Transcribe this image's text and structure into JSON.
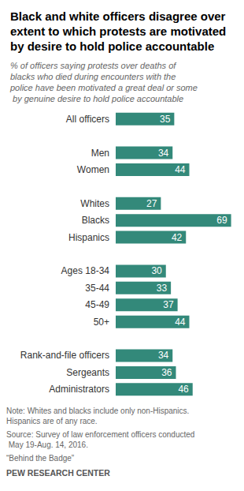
{
  "chart_data": {
    "type": "bar",
    "orientation": "horizontal",
    "title": "Black and white officers disagree over extent to which protests are motivated by desire to hold police accountable",
    "subtitle": "% of officers saying protests over deaths of blacks who died during encounters with the police have been motivated a great deal or some by genuine desire to hold police accountable",
    "categories": [
      "All officers",
      null,
      "Men",
      "Women",
      null,
      "Whites",
      "Blacks",
      "Hispanics",
      null,
      "Ages 18-34",
      "35-44",
      "45-49",
      "50+",
      null,
      "Rank-and-file officers",
      "Sergeants",
      "Administrators"
    ],
    "values": [
      35,
      null,
      34,
      44,
      null,
      27,
      69,
      42,
      null,
      30,
      33,
      37,
      44,
      null,
      34,
      36,
      46
    ],
    "color": "#33897a",
    "xlim": [
      0,
      72
    ],
    "grid": false,
    "data_labels": true,
    "tick_labels": "y",
    "annotations": [
      "Note: Whites and blacks include only non-Hispanics. Hispanics are of any race.",
      "Source: Survey of law enforcement officers conducted May 19-Aug. 14, 2016.",
      "“Behind the Badge”",
      "PEW RESEARCH CENTER"
    ]
  }
}
